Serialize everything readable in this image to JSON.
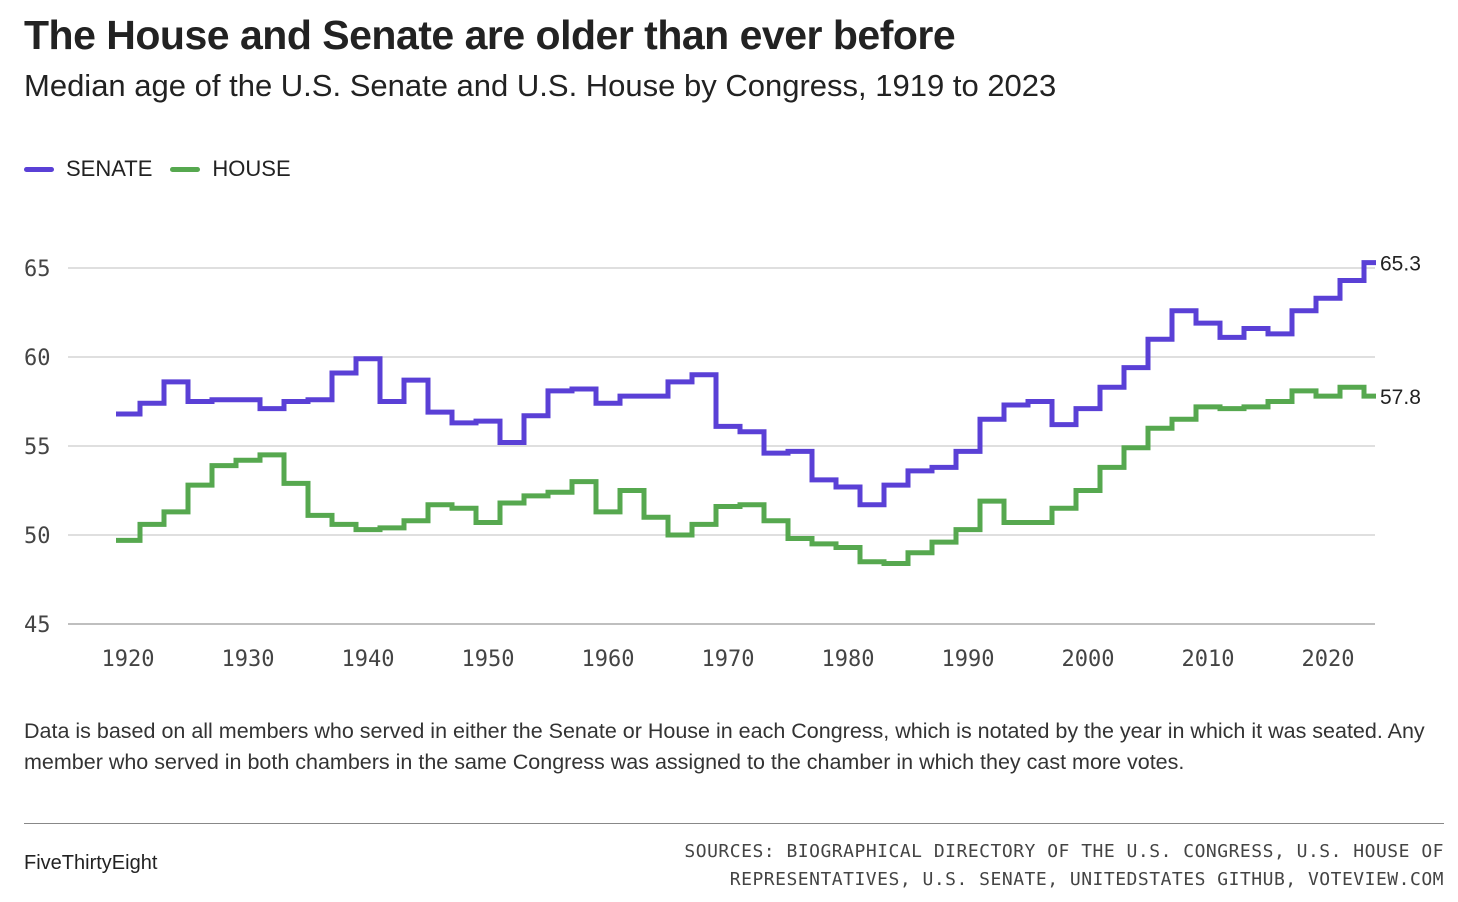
{
  "title": "The House and Senate are older than ever before",
  "subtitle": "Median age of the U.S. Senate and U.S. House by Congress, 1919 to 2023",
  "legend": {
    "senate": "SENATE",
    "house": "HOUSE"
  },
  "colors": {
    "senate": "#5a40d6",
    "house": "#56a84f",
    "grid": "#cccccc"
  },
  "note": "Data is based on all members who served in either the Senate or House in each Congress, which is notated by the year in which it was seated. Any member who served in both chambers in the same Congress was assigned to the chamber in which they cast more votes.",
  "brand": "FiveThirtyEight",
  "sources": "SOURCES: BIOGRAPHICAL DIRECTORY OF THE U.S. CONGRESS, U.S. HOUSE OF REPRESENTATIVES, U.S. SENATE, UNITEDSTATES GITHUB, VOTEVIEW.COM",
  "chart_data": {
    "type": "line",
    "step": true,
    "x": [
      1919,
      1921,
      1923,
      1925,
      1927,
      1929,
      1931,
      1933,
      1935,
      1937,
      1939,
      1941,
      1943,
      1945,
      1947,
      1949,
      1951,
      1953,
      1955,
      1957,
      1959,
      1961,
      1963,
      1965,
      1967,
      1969,
      1971,
      1973,
      1975,
      1977,
      1979,
      1981,
      1983,
      1985,
      1987,
      1989,
      1991,
      1993,
      1995,
      1997,
      1999,
      2001,
      2003,
      2005,
      2007,
      2009,
      2011,
      2013,
      2015,
      2017,
      2019,
      2021,
      2023
    ],
    "series": [
      {
        "name": "SENATE",
        "end_label": "65.3",
        "values": [
          56.8,
          57.4,
          58.6,
          57.5,
          57.6,
          57.6,
          57.1,
          57.5,
          57.6,
          59.1,
          59.9,
          57.5,
          58.7,
          56.9,
          56.3,
          56.4,
          55.2,
          56.7,
          58.1,
          58.2,
          57.4,
          57.8,
          57.8,
          58.6,
          59.0,
          56.1,
          55.8,
          54.6,
          54.7,
          53.1,
          52.7,
          51.7,
          52.8,
          53.6,
          53.8,
          54.7,
          56.5,
          57.3,
          57.5,
          56.2,
          57.1,
          58.3,
          59.4,
          61.0,
          62.6,
          61.9,
          61.1,
          61.6,
          61.3,
          62.6,
          63.3,
          64.3,
          65.3
        ]
      },
      {
        "name": "HOUSE",
        "end_label": "57.8",
        "values": [
          49.7,
          50.6,
          51.3,
          52.8,
          53.9,
          54.2,
          54.5,
          52.9,
          51.1,
          50.6,
          50.3,
          50.4,
          50.8,
          51.7,
          51.5,
          50.7,
          51.8,
          52.2,
          52.4,
          53.0,
          51.3,
          52.5,
          51.0,
          50.0,
          50.6,
          51.6,
          51.7,
          50.8,
          49.8,
          49.5,
          49.3,
          48.5,
          48.4,
          49.0,
          49.6,
          50.3,
          51.9,
          50.7,
          50.7,
          51.5,
          52.5,
          53.8,
          54.9,
          56.0,
          56.5,
          57.2,
          57.1,
          57.2,
          57.5,
          58.1,
          57.8,
          58.3,
          57.8
        ]
      }
    ],
    "yticks": [
      45,
      50,
      55,
      60,
      65
    ],
    "xticks": [
      1920,
      1930,
      1940,
      1950,
      1960,
      1970,
      1980,
      1990,
      2000,
      2010,
      2020
    ],
    "ylim": [
      45,
      67
    ],
    "xlim": [
      1914,
      2027
    ],
    "grid": true,
    "legend_position": "top-left"
  }
}
